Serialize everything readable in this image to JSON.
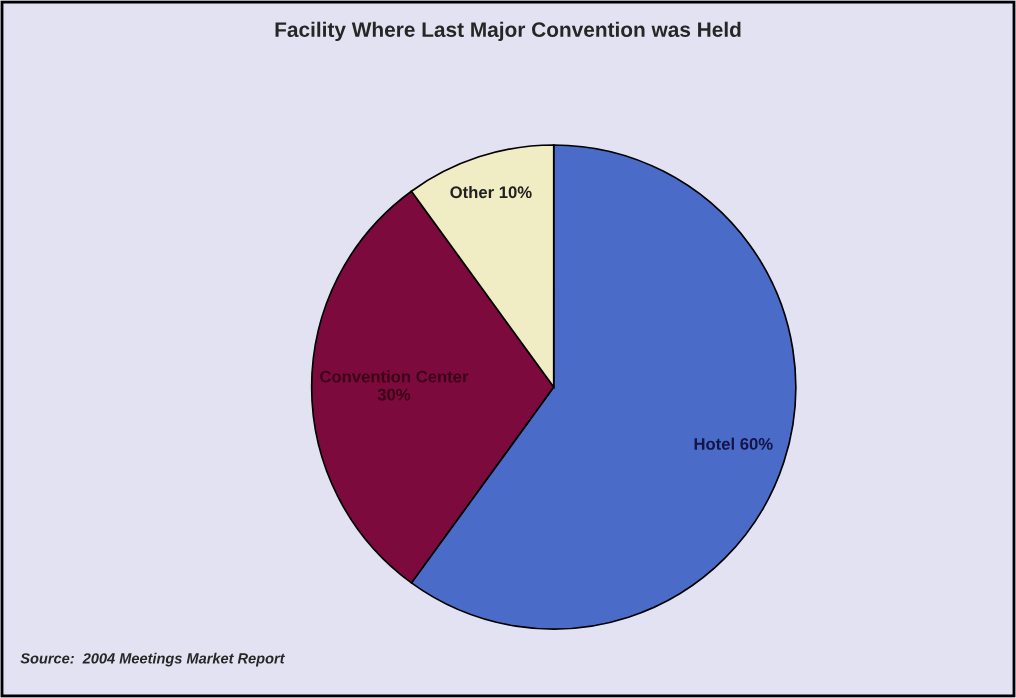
{
  "chart_data": {
    "type": "pie",
    "title": "Facility Where Last Major Convention was Held",
    "categories": [
      "Hotel",
      "Convention Center",
      "Other"
    ],
    "values": [
      60,
      30,
      10
    ],
    "value_labels": [
      "60%",
      "30%",
      "10%"
    ],
    "colors": [
      "#4a6cc8",
      "#7d0a3c",
      "#f0ecc4"
    ],
    "annotations": [
      "Source:  2004 Meetings Market Report"
    ]
  }
}
